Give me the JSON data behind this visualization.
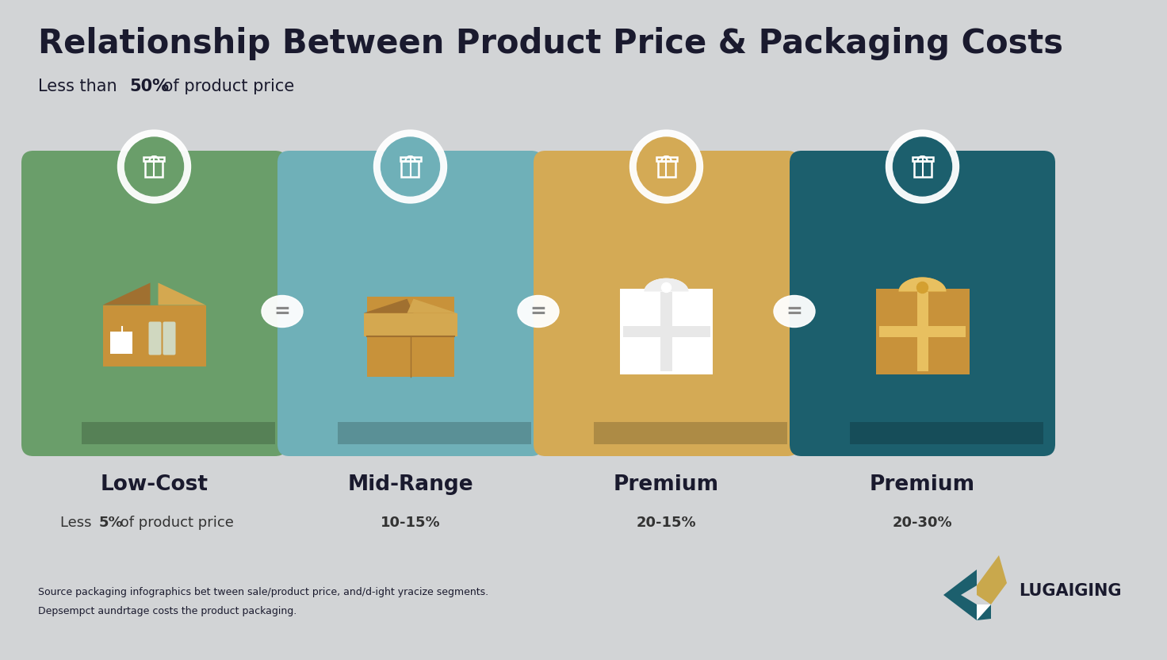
{
  "title": "Relationship Between Product Price & Packaging Costs",
  "subtitle_pre": "Less than ",
  "subtitle_bold": "50%",
  "subtitle_post": " of product price",
  "background_color": "#d2d4d6",
  "card_colors": [
    "#6a9e6a",
    "#6fb0b8",
    "#d4aa55",
    "#1c5f6d"
  ],
  "categories": [
    "Low-Cost",
    "Mid-Range",
    "Premium",
    "Premium"
  ],
  "sublabels_pre": [
    "Less ",
    "",
    "",
    ""
  ],
  "sublabels_bold": [
    "5%",
    "10-15%",
    "20-15%",
    "20-30%"
  ],
  "sublabels_post": [
    " of product price",
    "",
    "",
    ""
  ],
  "source_line1": "Source packaging infographics bet tween sale/product price, and/d-ight yracize segments.",
  "source_line2": "Depsempct aundrtage costs the product packaging.",
  "logo_text": "LUGAIGING",
  "logo_teal": "#1c5f6d",
  "logo_gold": "#c9a84c",
  "equal_color": "#888888"
}
